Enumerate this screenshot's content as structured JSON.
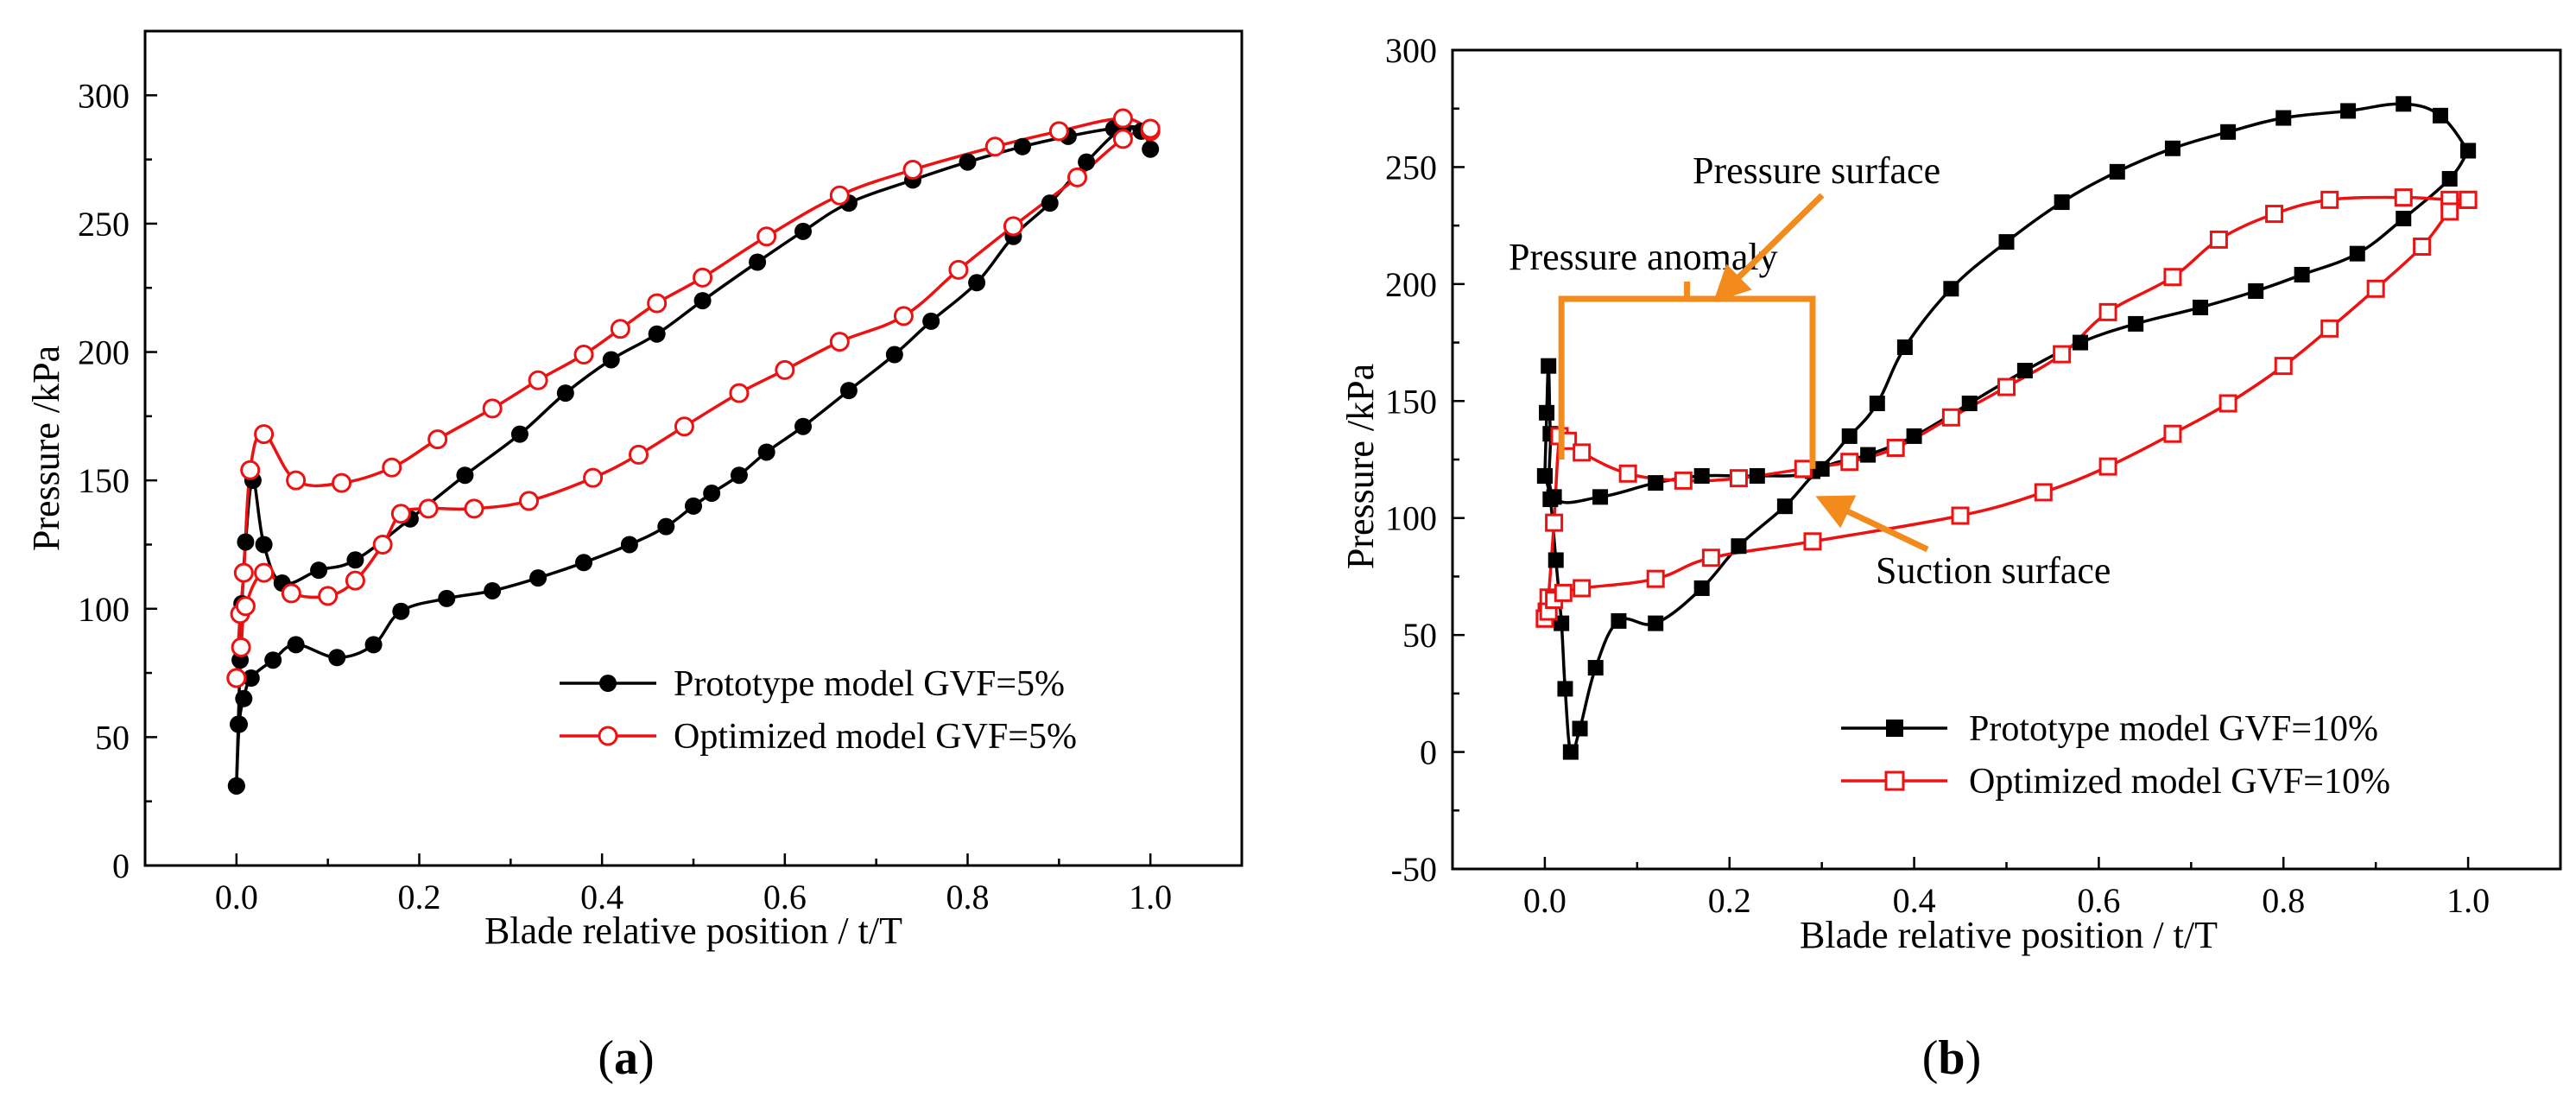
{
  "chart_data": [
    {
      "type": "line",
      "panel_label": "(a)",
      "panel_letter": "a",
      "xlabel": "Blade relative position     /  t/T",
      "ylabel": "Pressure  /kPa",
      "xlim": [
        -0.1,
        1.1
      ],
      "ylim": [
        0,
        325
      ],
      "xticks": [
        0.0,
        0.2,
        0.4,
        0.6,
        0.8,
        1.0
      ],
      "xtick_labels": [
        "0.0",
        "0.2",
        "0.4",
        "0.6",
        "0.8",
        "1.0"
      ],
      "yticks": [
        0,
        50,
        100,
        150,
        200,
        250,
        300
      ],
      "ytick_labels": [
        "0",
        "50",
        "100",
        "150",
        "200",
        "250",
        "300"
      ],
      "legend_position": "bottom-right",
      "series": [
        {
          "name": "Prototype model GVF=5%",
          "color": "#000000",
          "marker": "filled-circle",
          "pressure_surface": [
            [
              0.0,
              31
            ],
            [
              0.002,
              55
            ],
            [
              0.004,
              80
            ],
            [
              0.006,
              102
            ],
            [
              0.01,
              126
            ],
            [
              0.018,
              150
            ],
            [
              0.03,
              125
            ],
            [
              0.05,
              110
            ],
            [
              0.09,
              115
            ],
            [
              0.13,
              119
            ],
            [
              0.19,
              135
            ],
            [
              0.25,
              152
            ],
            [
              0.31,
              168
            ],
            [
              0.36,
              184
            ],
            [
              0.41,
              197
            ],
            [
              0.46,
              207
            ],
            [
              0.51,
              220
            ],
            [
              0.57,
              235
            ],
            [
              0.62,
              247
            ],
            [
              0.67,
              258
            ],
            [
              0.74,
              267
            ],
            [
              0.8,
              274
            ],
            [
              0.86,
              280
            ],
            [
              0.91,
              284
            ],
            [
              0.96,
              287
            ],
            [
              0.99,
              286
            ],
            [
              1.0,
              279
            ]
          ],
          "suction_surface": [
            [
              0.0,
              31
            ],
            [
              0.003,
              55
            ],
            [
              0.008,
              65
            ],
            [
              0.016,
              73
            ],
            [
              0.04,
              80
            ],
            [
              0.065,
              86
            ],
            [
              0.11,
              81
            ],
            [
              0.15,
              86
            ],
            [
              0.18,
              99
            ],
            [
              0.23,
              104
            ],
            [
              0.28,
              107
            ],
            [
              0.33,
              112
            ],
            [
              0.38,
              118
            ],
            [
              0.43,
              125
            ],
            [
              0.47,
              132
            ],
            [
              0.5,
              140
            ],
            [
              0.52,
              145
            ],
            [
              0.55,
              152
            ],
            [
              0.58,
              161
            ],
            [
              0.62,
              171
            ],
            [
              0.67,
              185
            ],
            [
              0.72,
              199
            ],
            [
              0.76,
              212
            ],
            [
              0.81,
              227
            ],
            [
              0.85,
              245
            ],
            [
              0.89,
              258
            ],
            [
              0.93,
              274
            ],
            [
              0.97,
              287
            ],
            [
              1.0,
              286
            ]
          ]
        },
        {
          "name": "Optimized model GVF=5%",
          "color": "#ee1111",
          "marker": "open-circle",
          "pressure_surface": [
            [
              0.0,
              73
            ],
            [
              0.004,
              98
            ],
            [
              0.008,
              114
            ],
            [
              0.015,
              154
            ],
            [
              0.03,
              168
            ],
            [
              0.065,
              150
            ],
            [
              0.115,
              149
            ],
            [
              0.17,
              155
            ],
            [
              0.22,
              166
            ],
            [
              0.28,
              178
            ],
            [
              0.33,
              189
            ],
            [
              0.38,
              199
            ],
            [
              0.42,
              209
            ],
            [
              0.46,
              219
            ],
            [
              0.51,
              229
            ],
            [
              0.58,
              245
            ],
            [
              0.66,
              261
            ],
            [
              0.74,
              271
            ],
            [
              0.83,
              280
            ],
            [
              0.9,
              286
            ],
            [
              0.97,
              291
            ],
            [
              1.0,
              286
            ]
          ],
          "suction_surface": [
            [
              0.0,
              73
            ],
            [
              0.005,
              85
            ],
            [
              0.01,
              101
            ],
            [
              0.03,
              114
            ],
            [
              0.06,
              106
            ],
            [
              0.1,
              105
            ],
            [
              0.13,
              111
            ],
            [
              0.16,
              125
            ],
            [
              0.18,
              137
            ],
            [
              0.21,
              139
            ],
            [
              0.26,
              139
            ],
            [
              0.32,
              142
            ],
            [
              0.39,
              151
            ],
            [
              0.44,
              160
            ],
            [
              0.49,
              171
            ],
            [
              0.55,
              184
            ],
            [
              0.6,
              193
            ],
            [
              0.66,
              204
            ],
            [
              0.73,
              214
            ],
            [
              0.79,
              232
            ],
            [
              0.85,
              249
            ],
            [
              0.92,
              268
            ],
            [
              0.97,
              283
            ],
            [
              1.0,
              287
            ]
          ]
        }
      ]
    },
    {
      "type": "line",
      "panel_label": "(b)",
      "panel_letter": "b",
      "xlabel": "Blade relative position     /  t/T",
      "ylabel": "Pressure  /kPa",
      "xlim": [
        -0.1,
        1.1
      ],
      "ylim": [
        -50,
        300
      ],
      "xticks": [
        0.0,
        0.2,
        0.4,
        0.6,
        0.8,
        1.0
      ],
      "xtick_labels": [
        "0.0",
        "0.2",
        "0.4",
        "0.6",
        "0.8",
        "1.0"
      ],
      "yticks": [
        -50,
        0,
        50,
        100,
        150,
        200,
        250,
        300
      ],
      "ytick_labels": [
        "-50",
        "0",
        "50",
        "100",
        "150",
        "200",
        "250",
        "300"
      ],
      "legend_position": "bottom-right",
      "annotations": {
        "pressure_surface": "Pressure surface",
        "suction_surface": "Suction surface",
        "pressure_anomaly": "Pressure anomaly",
        "anomaly_range": [
          0.018,
          0.29
        ],
        "arrow_color": "#f28a1c"
      },
      "series": [
        {
          "name": "Prototype model GVF=10%",
          "color": "#000000",
          "marker": "filled-square",
          "pressure_surface": [
            [
              0.0,
              118
            ],
            [
              0.002,
              145
            ],
            [
              0.004,
              165
            ],
            [
              0.006,
              136
            ],
            [
              0.01,
              109
            ],
            [
              0.06,
              109
            ],
            [
              0.12,
              115
            ],
            [
              0.17,
              118
            ],
            [
              0.23,
              118
            ],
            [
              0.29,
              120
            ],
            [
              0.33,
              135
            ],
            [
              0.36,
              149
            ],
            [
              0.39,
              173
            ],
            [
              0.44,
              198
            ],
            [
              0.5,
              218
            ],
            [
              0.56,
              235
            ],
            [
              0.62,
              248
            ],
            [
              0.68,
              258
            ],
            [
              0.74,
              265
            ],
            [
              0.8,
              271
            ],
            [
              0.87,
              274
            ],
            [
              0.93,
              277
            ],
            [
              0.97,
              272
            ],
            [
              1.0,
              257
            ]
          ],
          "suction_surface": [
            [
              0.0,
              118
            ],
            [
              0.006,
              108
            ],
            [
              0.012,
              82
            ],
            [
              0.018,
              55
            ],
            [
              0.022,
              27
            ],
            [
              0.028,
              0
            ],
            [
              0.038,
              10
            ],
            [
              0.055,
              36
            ],
            [
              0.08,
              56
            ],
            [
              0.12,
              55
            ],
            [
              0.17,
              70
            ],
            [
              0.21,
              88
            ],
            [
              0.26,
              105
            ],
            [
              0.3,
              121
            ],
            [
              0.35,
              127
            ],
            [
              0.4,
              135
            ],
            [
              0.46,
              149
            ],
            [
              0.52,
              163
            ],
            [
              0.58,
              175
            ],
            [
              0.64,
              183
            ],
            [
              0.71,
              190
            ],
            [
              0.77,
              197
            ],
            [
              0.82,
              204
            ],
            [
              0.88,
              213
            ],
            [
              0.93,
              228
            ],
            [
              0.98,
              245
            ],
            [
              1.0,
              257
            ]
          ]
        },
        {
          "name": "Optimized model GVF=10%",
          "color": "#ee1111",
          "marker": "open-square",
          "pressure_surface": [
            [
              0.0,
              57
            ],
            [
              0.002,
              60
            ],
            [
              0.004,
              66
            ],
            [
              0.01,
              98
            ],
            [
              0.016,
              135
            ],
            [
              0.025,
              133
            ],
            [
              0.04,
              128
            ],
            [
              0.09,
              119
            ],
            [
              0.15,
              116
            ],
            [
              0.21,
              117
            ],
            [
              0.28,
              121
            ],
            [
              0.33,
              124
            ],
            [
              0.38,
              130
            ],
            [
              0.44,
              143
            ],
            [
              0.5,
              156
            ],
            [
              0.56,
              170
            ],
            [
              0.61,
              188
            ],
            [
              0.68,
              203
            ],
            [
              0.73,
              219
            ],
            [
              0.79,
              230
            ],
            [
              0.85,
              236
            ],
            [
              0.93,
              237
            ],
            [
              0.98,
              236
            ],
            [
              1.0,
              236
            ]
          ],
          "suction_surface": [
            [
              0.0,
              57
            ],
            [
              0.004,
              60
            ],
            [
              0.01,
              65
            ],
            [
              0.02,
              68
            ],
            [
              0.04,
              70
            ],
            [
              0.12,
              74
            ],
            [
              0.18,
              83
            ],
            [
              0.29,
              90
            ],
            [
              0.45,
              101
            ],
            [
              0.54,
              111
            ],
            [
              0.61,
              122
            ],
            [
              0.68,
              136
            ],
            [
              0.74,
              149
            ],
            [
              0.8,
              165
            ],
            [
              0.85,
              181
            ],
            [
              0.9,
              198
            ],
            [
              0.95,
              216
            ],
            [
              0.98,
              231
            ],
            [
              1.0,
              236
            ]
          ]
        }
      ]
    }
  ]
}
